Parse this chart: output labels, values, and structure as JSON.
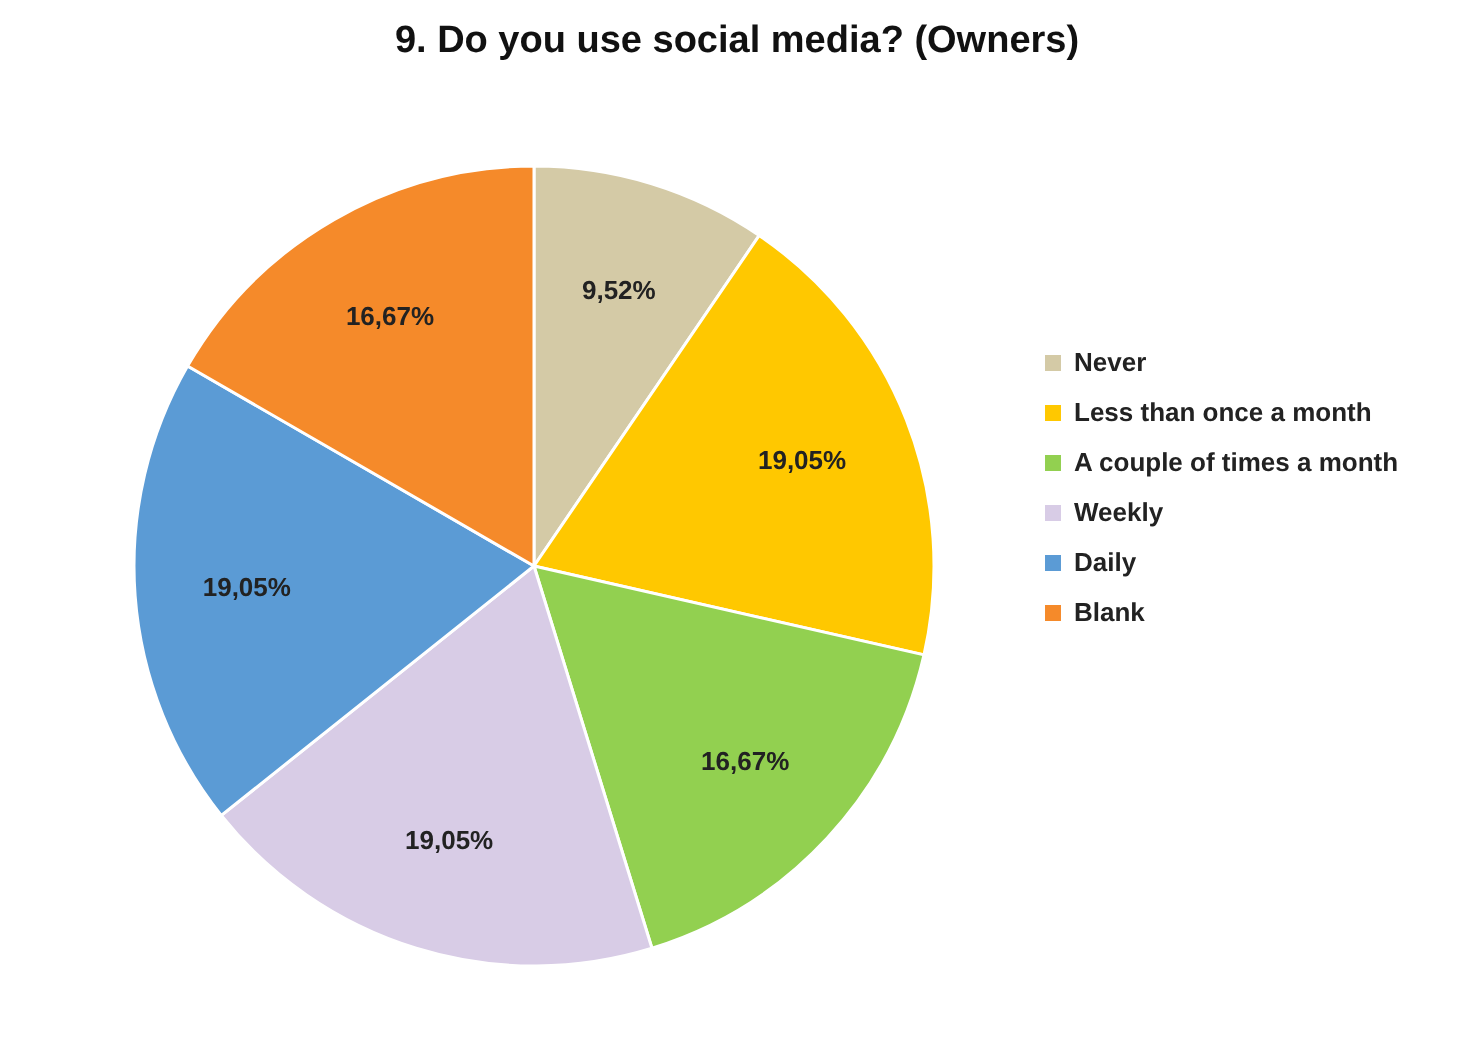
{
  "chart_data": {
    "type": "pie",
    "title": "9. Do you use social media? (Owners)",
    "categories": [
      "Never",
      "Less than once a month",
      "A couple of times a month",
      "Weekly",
      "Daily",
      "Blank"
    ],
    "values": [
      9.52,
      19.05,
      16.67,
      19.05,
      19.05,
      16.67
    ],
    "colors": [
      "#d4caa6",
      "#ffc800",
      "#92d050",
      "#d8cce6",
      "#5b9bd5",
      "#f58a2a"
    ],
    "value_labels": [
      "9,52%",
      "19,05%",
      "16,67%",
      "19,05%",
      "19,05%",
      "16,67%"
    ],
    "legend": "right"
  }
}
